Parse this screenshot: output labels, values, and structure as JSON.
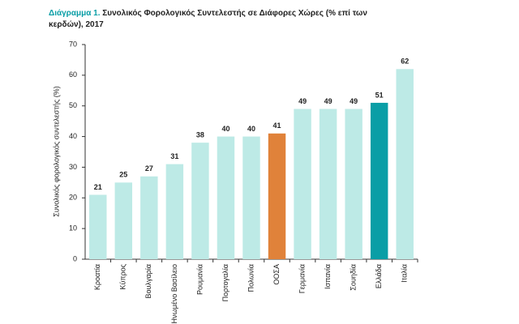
{
  "chart_data": {
    "type": "bar",
    "title_label": "Διάγραμμα 1.",
    "title": "Συνολικός Φορολογικός Συντελεστής σε Διάφορες Χώρες (% επί των κερδών), 2017",
    "y_label": "Συνολικός φορολογικός συντελεστής (%)",
    "categories": [
      "Κροατία",
      "Κύπρος",
      "Βουλγαρία",
      "Ηνωμένο Βασίλειο",
      "Ρουμανία",
      "Πορτογαλία",
      "Πολωνία",
      "ΟΟΣΑ",
      "Γερμανία",
      "Ισπανία",
      "Σουηδία",
      "Ελλάδα",
      "Ιταλία"
    ],
    "values": [
      21,
      25,
      27,
      31,
      38,
      40,
      40,
      41,
      49,
      49,
      49,
      51,
      62
    ],
    "colors": [
      "#bdeae6",
      "#bdeae6",
      "#bdeae6",
      "#bdeae6",
      "#bdeae6",
      "#bdeae6",
      "#bdeae6",
      "#e0823a",
      "#bdeae6",
      "#bdeae6",
      "#bdeae6",
      "#0a9ea6",
      "#bdeae6"
    ],
    "ylim": [
      0,
      70
    ],
    "yticks": [
      0,
      10,
      20,
      30,
      40,
      50,
      60,
      70
    ],
    "grid": false
  }
}
